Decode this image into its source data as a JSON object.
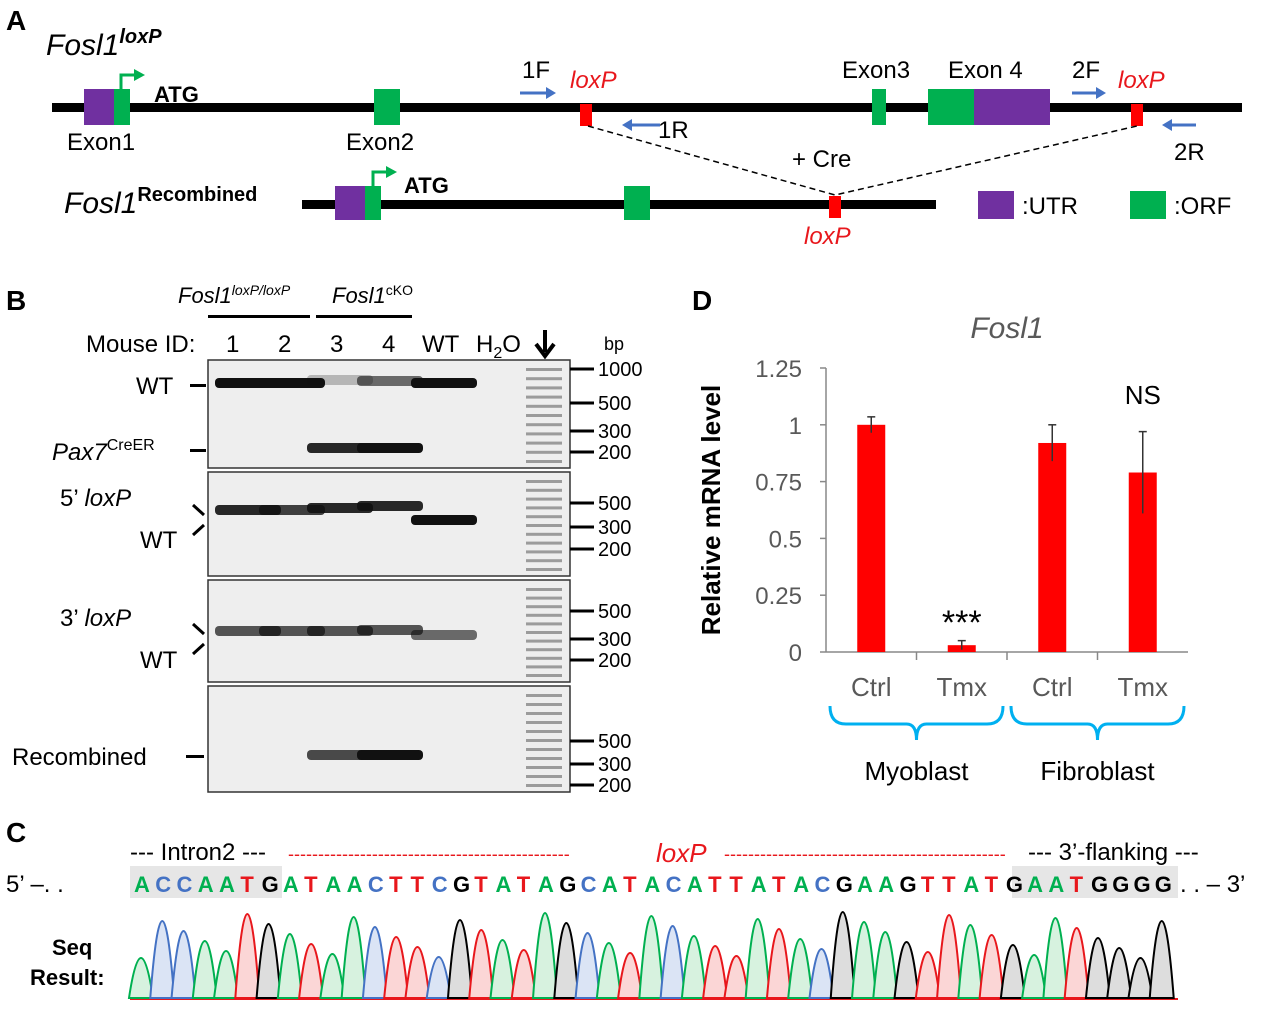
{
  "panel_a": {
    "letter": "A",
    "gene_loxp_base": "Fosl1",
    "gene_loxp_sup": "loxP",
    "gene_rec_base": "Fosl1",
    "gene_rec_sup": "Recombined",
    "atg": "ATG",
    "exon1": "Exon1",
    "exon2": "Exon2",
    "exon3": "Exon3",
    "exon4": "Exon 4",
    "loxp": "loxP",
    "primer_1f": "1F",
    "primer_1r": "1R",
    "primer_2f": "2F",
    "primer_2r": "2R",
    "cre": "+ Cre",
    "legend_utr": ":UTR",
    "legend_orf": ":ORF",
    "colors": {
      "utr": "#7030a0",
      "orf": "#00b050",
      "loxp": "#ff0000",
      "primer": "#4472c4"
    }
  },
  "panel_b": {
    "letter": "B",
    "group1_base": "Fosl1",
    "group1_sup": "loxP/loxP",
    "group2_base": "Fosl1",
    "group2_sup": "cKO",
    "mouse_id_label": "Mouse ID:",
    "lanes": [
      "1",
      "2",
      "3",
      "4",
      "WT"
    ],
    "h2o_base": "H",
    "h2o_sub": "2",
    "h2o_end": "O",
    "bp": "bp",
    "gel1_labels": {
      "wt": "WT",
      "pax7_base": "Pax7",
      "pax7_sup": "CreER"
    },
    "gel1_ticks": [
      "1000",
      "500",
      "300",
      "200"
    ],
    "gel2_labels": {
      "loxp_prefix": "5’ ",
      "loxp_italic": "loxP",
      "wt": "WT"
    },
    "gel2_ticks": [
      "500",
      "300",
      "200"
    ],
    "gel3_labels": {
      "loxp_prefix": "3’ ",
      "loxp_italic": "loxP",
      "wt": "WT"
    },
    "gel3_ticks": [
      "500",
      "300",
      "200"
    ],
    "gel4_labels": {
      "recombined": "Recombined"
    },
    "gel4_ticks": [
      "500",
      "300",
      "200"
    ]
  },
  "panel_c": {
    "letter": "C",
    "intron2": "--- Intron2 ---",
    "loxp_dash_left": "-----------------------------------------------",
    "loxp": "loxP",
    "loxp_dash_right": "-----------------------------------------------",
    "flanking": "--- 3’-flanking ---",
    "prime5": "5’ –. .",
    "sequence": "ACCAATGATAACTTCGTATAGCATACATTATACGAAGTTATGAATGGGG",
    "prime3": ". . – 3’",
    "seq_result_1": "Seq",
    "seq_result_2": "Result:",
    "base_colors": {
      "A": "#00b050",
      "T": "#e8171c",
      "G": "#000000",
      "C": "#4472c4"
    }
  },
  "panel_d": {
    "letter": "D",
    "chart_data": {
      "type": "bar",
      "title": "Fosl1",
      "ylabel": "Relative mRNA level",
      "ylim": [
        0,
        1.25
      ],
      "yticks": [
        "0",
        "0.25",
        "0.5",
        "0.75",
        "1",
        "1.25"
      ],
      "categories": [
        "Ctrl",
        "Tmx",
        "Ctrl",
        "Tmx"
      ],
      "groups": [
        "Myoblast",
        "Fibroblast"
      ],
      "values": [
        1.0,
        0.03,
        0.92,
        0.79
      ],
      "errors": [
        0.035,
        0.02,
        0.08,
        0.18
      ],
      "annotations": [
        "",
        "***",
        "",
        "NS"
      ],
      "bar_color": "#ff0000",
      "bracket_color": "#00b0f0"
    }
  }
}
